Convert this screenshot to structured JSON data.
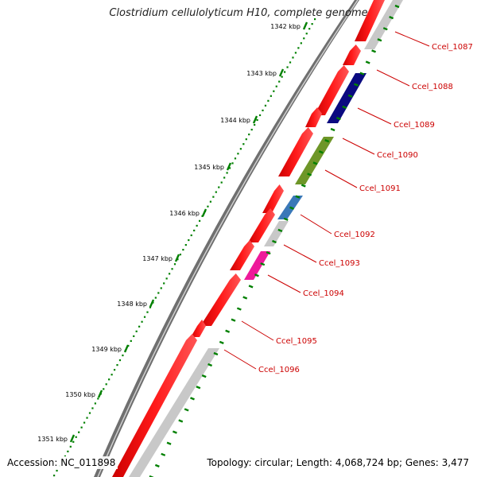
{
  "title": "Clostridium cellulolyticum H10, complete genome",
  "footer": {
    "accession": "Accession: NC_011898",
    "topology": "Topology: circular; Length: 4,068,724 bp; Genes: 3,477"
  },
  "ruler_ticks": [
    "1342 kbp",
    "1343 kbp",
    "1344 kbp",
    "1345 kbp",
    "1346 kbp",
    "1347 kbp",
    "1348 kbp",
    "1349 kbp",
    "1350 kbp",
    "1351 kbp"
  ],
  "gene_labels": [
    "Ccel_1087",
    "Ccel_1088",
    "Ccel_1089",
    "Ccel_1090",
    "Ccel_1091",
    "Ccel_1092",
    "Ccel_1093",
    "Ccel_1094",
    "Ccel_1095",
    "Ccel_1096"
  ],
  "colors": {
    "cds": "#ff0000",
    "backbone": "#777777",
    "ruler": "#008000",
    "label": "#cc0000",
    "feature_gray": "#c8c8c8",
    "feature_navy": "#0a0a80",
    "feature_olive": "#6e9628",
    "feature_steelblue": "#3a78b8",
    "feature_magenta": "#ee1a9a"
  }
}
